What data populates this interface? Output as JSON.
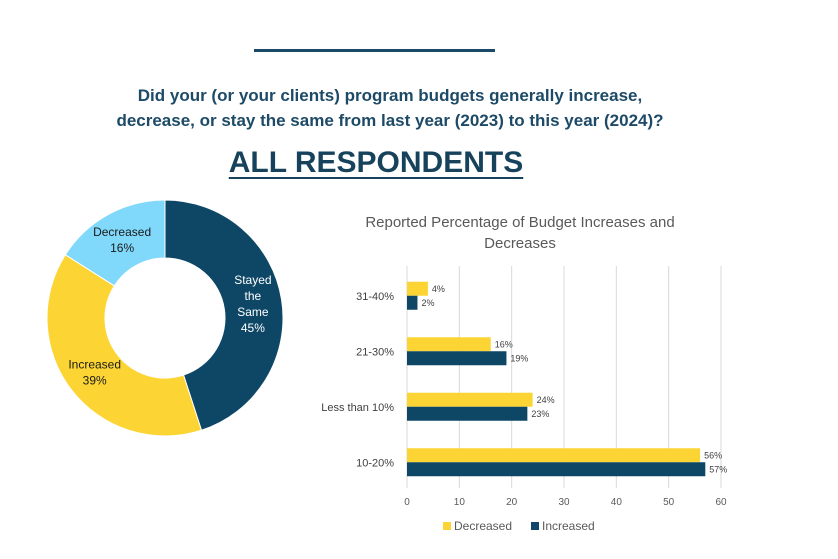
{
  "question_lines": [
    "Did your (or your clients) program budgets generally increase,",
    "decrease, or stay the same from last year (2023) to this year (2024)?"
  ],
  "headline": "ALL RESPONDENTS",
  "colors": {
    "navy": "#0e4766",
    "yellow": "#fcd535",
    "lightblue": "#80d8fb",
    "title": "#1d4a66"
  },
  "chart_data": [
    {
      "type": "pie",
      "variant": "donut",
      "slices": [
        {
          "name": "Stayed the Same",
          "label_lines": [
            "Stayed",
            "the",
            "Same"
          ],
          "value": 45,
          "value_label": "45%",
          "color": "#0e4766",
          "text_color": "#ffffff"
        },
        {
          "name": "Increased",
          "label_lines": [
            "Increased"
          ],
          "value": 39,
          "value_label": "39%",
          "color": "#fcd535",
          "text_color": "#1a1a1a"
        },
        {
          "name": "Decreased",
          "label_lines": [
            "Decreased"
          ],
          "value": 16,
          "value_label": "16%",
          "color": "#80d8fb",
          "text_color": "#1a1a1a"
        }
      ]
    },
    {
      "type": "bar",
      "orientation": "horizontal",
      "title_lines": [
        "Reported Percentage of Budget Increases and",
        "Decreases"
      ],
      "categories": [
        "31-40%",
        "21-30%",
        "Less than 10%",
        "10-20%"
      ],
      "series": [
        {
          "name": "Decreased",
          "color": "#fcd535",
          "values": [
            4,
            16,
            24,
            56
          ],
          "labels": [
            "4%",
            "16%",
            "24%",
            "56%"
          ]
        },
        {
          "name": "Increased",
          "color": "#0e4766",
          "values": [
            2,
            19,
            23,
            57
          ],
          "labels": [
            "2%",
            "19%",
            "23%",
            "57%"
          ]
        }
      ],
      "xlim": [
        0,
        60
      ],
      "xticks": [
        0,
        10,
        20,
        30,
        40,
        50,
        60
      ],
      "grid": true,
      "legend": "bottom"
    }
  ]
}
